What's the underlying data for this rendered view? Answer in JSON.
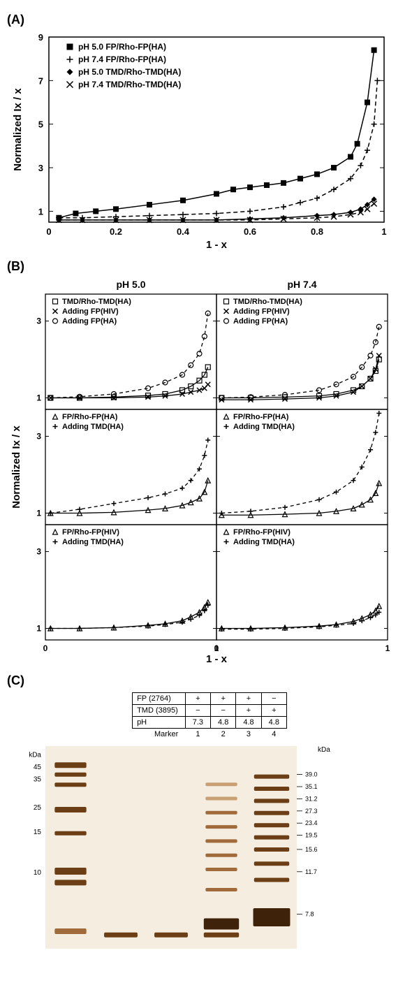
{
  "panelA": {
    "label": "(A)",
    "xlabel": "1 - x",
    "ylabel": "Normalized Ix / x",
    "xlim": [
      0,
      1
    ],
    "ylim": [
      0.5,
      9
    ],
    "xticks": [
      0,
      0.2,
      0.4,
      0.6,
      0.8,
      1
    ],
    "yticks": [
      1,
      3,
      5,
      7,
      9
    ],
    "background_color": "#ffffff",
    "axis_color": "#000000",
    "series": [
      {
        "name": "pH 5.0 FP/Rho-FP(HA)",
        "marker": "filled-square",
        "color": "#000000",
        "line_dash": "solid",
        "x": [
          0.03,
          0.08,
          0.14,
          0.2,
          0.3,
          0.4,
          0.5,
          0.55,
          0.6,
          0.65,
          0.7,
          0.75,
          0.8,
          0.85,
          0.9,
          0.92,
          0.95,
          0.97
        ],
        "y": [
          0.7,
          0.9,
          1.0,
          1.1,
          1.3,
          1.5,
          1.8,
          2.0,
          2.1,
          2.2,
          2.3,
          2.5,
          2.7,
          3.0,
          3.5,
          4.1,
          6.0,
          8.4
        ]
      },
      {
        "name": "pH 7.4 FP/Rho-FP(HA)",
        "marker": "plus",
        "color": "#000000",
        "line_dash": "dashed",
        "x": [
          0.03,
          0.1,
          0.2,
          0.3,
          0.4,
          0.5,
          0.6,
          0.7,
          0.75,
          0.8,
          0.85,
          0.9,
          0.93,
          0.95,
          0.97,
          0.98
        ],
        "y": [
          0.7,
          0.7,
          0.75,
          0.8,
          0.85,
          0.9,
          1.0,
          1.2,
          1.4,
          1.6,
          2.0,
          2.5,
          3.1,
          3.8,
          5.0,
          7.0
        ]
      },
      {
        "name": "pH 5.0 TMD/Rho-TMD(HA)",
        "marker": "filled-diamond",
        "color": "#000000",
        "line_dash": "solid",
        "x": [
          0.03,
          0.1,
          0.2,
          0.3,
          0.4,
          0.5,
          0.6,
          0.7,
          0.8,
          0.85,
          0.9,
          0.93,
          0.95,
          0.97
        ],
        "y": [
          0.6,
          0.6,
          0.6,
          0.6,
          0.6,
          0.6,
          0.65,
          0.7,
          0.8,
          0.85,
          0.95,
          1.1,
          1.3,
          1.55
        ]
      },
      {
        "name": "pH 7.4 TMD/Rho-TMD(HA)",
        "marker": "x",
        "color": "#000000",
        "line_dash": "dashed",
        "x": [
          0.03,
          0.1,
          0.2,
          0.3,
          0.4,
          0.5,
          0.6,
          0.7,
          0.8,
          0.85,
          0.9,
          0.93,
          0.95,
          0.97
        ],
        "y": [
          0.6,
          0.6,
          0.6,
          0.6,
          0.6,
          0.6,
          0.6,
          0.65,
          0.7,
          0.75,
          0.85,
          0.95,
          1.1,
          1.35
        ]
      }
    ]
  },
  "panelB": {
    "label": "(B)",
    "xlabel": "1 - x",
    "ylabel": "Normalized Ix / x",
    "xlim": [
      0,
      1
    ],
    "ylim": [
      0.7,
      3.7
    ],
    "xticks": [
      0,
      1
    ],
    "yticks": [
      1,
      3
    ],
    "col_titles": [
      "pH 5.0",
      "pH 7.4"
    ],
    "subplots": [
      {
        "row": 0,
        "col": 0,
        "legend": [
          "TMD/Rho-TMD(HA)",
          "Adding FP(HIV)",
          "Adding FP(HA)"
        ],
        "markers": [
          "open-square",
          "x",
          "open-circle"
        ],
        "dashes": [
          "solid",
          "solid",
          "dashed"
        ],
        "series": [
          {
            "x": [
              0.03,
              0.2,
              0.4,
              0.6,
              0.7,
              0.8,
              0.85,
              0.9,
              0.93,
              0.95
            ],
            "y": [
              1.0,
              1.0,
              1.02,
              1.06,
              1.1,
              1.2,
              1.3,
              1.45,
              1.6,
              1.8
            ]
          },
          {
            "x": [
              0.03,
              0.2,
              0.4,
              0.6,
              0.7,
              0.8,
              0.85,
              0.9,
              0.93,
              0.95
            ],
            "y": [
              1.0,
              1.0,
              1.0,
              1.02,
              1.05,
              1.1,
              1.15,
              1.2,
              1.25,
              1.35
            ]
          },
          {
            "x": [
              0.03,
              0.2,
              0.4,
              0.6,
              0.7,
              0.8,
              0.85,
              0.9,
              0.93,
              0.95
            ],
            "y": [
              1.0,
              1.03,
              1.1,
              1.25,
              1.4,
              1.6,
              1.85,
              2.15,
              2.6,
              3.2
            ]
          }
        ]
      },
      {
        "row": 0,
        "col": 1,
        "legend": [
          "TMD/Rho-TMD(HA)",
          "Adding FP(HIV)",
          "Adding FP(HA)"
        ],
        "markers": [
          "open-square",
          "x",
          "open-circle"
        ],
        "dashes": [
          "solid",
          "solid",
          "dashed"
        ],
        "series": [
          {
            "x": [
              0.03,
              0.2,
              0.4,
              0.6,
              0.7,
              0.8,
              0.85,
              0.9,
              0.93,
              0.95
            ],
            "y": [
              1.0,
              1.0,
              1.02,
              1.05,
              1.1,
              1.2,
              1.3,
              1.5,
              1.7,
              2.0
            ]
          },
          {
            "x": [
              0.03,
              0.2,
              0.4,
              0.6,
              0.7,
              0.8,
              0.85,
              0.9,
              0.93,
              0.95
            ],
            "y": [
              0.95,
              0.95,
              0.97,
              1.0,
              1.05,
              1.15,
              1.3,
              1.5,
              1.75,
              2.1
            ]
          },
          {
            "x": [
              0.03,
              0.2,
              0.4,
              0.6,
              0.7,
              0.8,
              0.85,
              0.9,
              0.93,
              0.95
            ],
            "y": [
              1.0,
              1.02,
              1.08,
              1.2,
              1.35,
              1.55,
              1.8,
              2.1,
              2.45,
              2.85
            ]
          }
        ]
      },
      {
        "row": 1,
        "col": 0,
        "legend": [
          "FP/Rho-FP(HA)",
          "Adding TMD(HA)"
        ],
        "markers": [
          "open-triangle",
          "plus"
        ],
        "dashes": [
          "solid",
          "dashed"
        ],
        "series": [
          {
            "x": [
              0.03,
              0.2,
              0.4,
              0.6,
              0.7,
              0.8,
              0.85,
              0.9,
              0.93,
              0.95
            ],
            "y": [
              1.0,
              1.0,
              1.02,
              1.08,
              1.12,
              1.2,
              1.28,
              1.38,
              1.55,
              1.85
            ]
          },
          {
            "x": [
              0.03,
              0.2,
              0.4,
              0.6,
              0.7,
              0.8,
              0.85,
              0.9,
              0.93,
              0.95
            ],
            "y": [
              1.0,
              1.1,
              1.25,
              1.4,
              1.5,
              1.65,
              1.85,
              2.15,
              2.5,
              2.9
            ]
          }
        ]
      },
      {
        "row": 1,
        "col": 1,
        "legend": [
          "FP/Rho-FP(HA)",
          "Adding TMD(HA)"
        ],
        "markers": [
          "open-triangle",
          "plus"
        ],
        "dashes": [
          "solid",
          "dashed"
        ],
        "series": [
          {
            "x": [
              0.03,
              0.2,
              0.4,
              0.6,
              0.7,
              0.8,
              0.85,
              0.9,
              0.93,
              0.95
            ],
            "y": [
              0.95,
              0.95,
              0.97,
              1.0,
              1.05,
              1.12,
              1.22,
              1.35,
              1.52,
              1.78
            ]
          },
          {
            "x": [
              0.03,
              0.2,
              0.4,
              0.6,
              0.7,
              0.8,
              0.85,
              0.9,
              0.93,
              0.95
            ],
            "y": [
              1.0,
              1.05,
              1.15,
              1.35,
              1.55,
              1.85,
              2.2,
              2.65,
              3.1,
              3.6
            ]
          }
        ]
      },
      {
        "row": 2,
        "col": 0,
        "legend": [
          "FP/Rho-FP(HIV)",
          "Adding TMD(HA)"
        ],
        "markers": [
          "open-triangle",
          "plus"
        ],
        "dashes": [
          "solid",
          "dashed"
        ],
        "series": [
          {
            "x": [
              0.03,
              0.2,
              0.4,
              0.6,
              0.7,
              0.8,
              0.85,
              0.9,
              0.93,
              0.95
            ],
            "y": [
              1.0,
              1.0,
              1.02,
              1.08,
              1.12,
              1.2,
              1.3,
              1.42,
              1.55,
              1.68
            ]
          },
          {
            "x": [
              0.03,
              0.2,
              0.4,
              0.6,
              0.7,
              0.8,
              0.85,
              0.9,
              0.93,
              0.95
            ],
            "y": [
              1.0,
              1.0,
              1.02,
              1.06,
              1.1,
              1.16,
              1.24,
              1.34,
              1.46,
              1.6
            ]
          }
        ]
      },
      {
        "row": 2,
        "col": 1,
        "legend": [
          "FP/Rho-FP(HIV)",
          "Adding TMD(HA)"
        ],
        "markers": [
          "open-triangle",
          "plus"
        ],
        "dashes": [
          "solid",
          "dashed"
        ],
        "series": [
          {
            "x": [
              0.03,
              0.2,
              0.4,
              0.6,
              0.7,
              0.8,
              0.85,
              0.9,
              0.93,
              0.95
            ],
            "y": [
              1.0,
              1.0,
              1.02,
              1.06,
              1.1,
              1.18,
              1.26,
              1.36,
              1.46,
              1.58
            ]
          },
          {
            "x": [
              0.03,
              0.2,
              0.4,
              0.6,
              0.7,
              0.8,
              0.85,
              0.9,
              0.93,
              0.95
            ],
            "y": [
              0.98,
              0.98,
              1.0,
              1.04,
              1.08,
              1.13,
              1.2,
              1.28,
              1.35,
              1.42
            ]
          }
        ]
      }
    ]
  },
  "panelC": {
    "label": "(C)",
    "table": {
      "rows": [
        {
          "hdr": "FP    (2764)",
          "cells": [
            "+",
            "+",
            "+",
            "−"
          ]
        },
        {
          "hdr": "TMD (3895)",
          "cells": [
            "−",
            "−",
            "+",
            "+"
          ]
        },
        {
          "hdr": "pH",
          "cells": [
            "7.3",
            "4.8",
            "4.8",
            "4.8"
          ]
        }
      ],
      "lane_header": "Marker",
      "lanes": [
        "1",
        "2",
        "3",
        "4"
      ]
    },
    "markers_left": [
      "kDa",
      "45",
      "35",
      "25",
      "15",
      "10"
    ],
    "markers_right_unit": "kDa",
    "markers_right": [
      "39.0",
      "35.1",
      "31.2",
      "27.3",
      "23.4",
      "19.5",
      "15.6",
      "11.7",
      "7.8"
    ],
    "gel_colors": {
      "background": "#f4ede0",
      "band_light": "#c9a074",
      "band_mid": "#a06a3a",
      "band_dark": "#6b3e16",
      "band_vdark": "#3f220a"
    }
  }
}
